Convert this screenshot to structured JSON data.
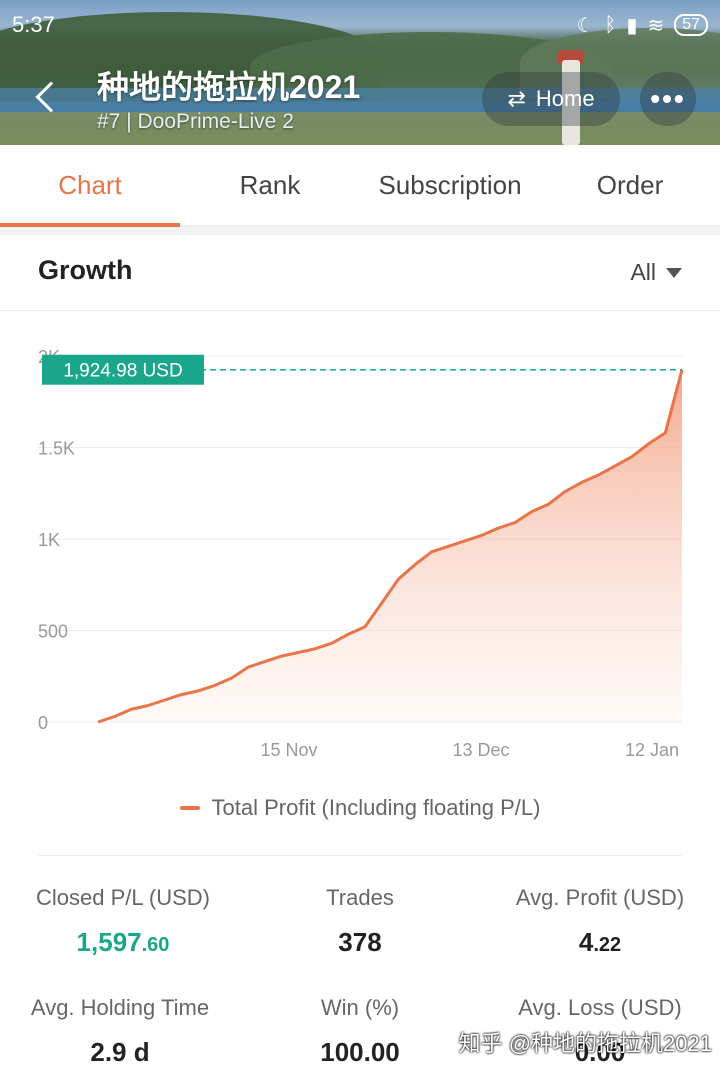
{
  "status_bar": {
    "time": "5:37",
    "battery": "57"
  },
  "header": {
    "title": "种地的拖拉机2021",
    "subtitle": "#7 | DooPrime-Live 2",
    "home_label": "Home",
    "more_label": "•••"
  },
  "tabs": [
    {
      "label": "Chart",
      "active": true
    },
    {
      "label": "Rank",
      "active": false
    },
    {
      "label": "Subscription",
      "active": false
    },
    {
      "label": "Order",
      "active": false
    }
  ],
  "growth": {
    "title": "Growth",
    "range": "All"
  },
  "chart_data": {
    "type": "area",
    "y_ticks": [
      "0",
      "500",
      "1K",
      "1.5K",
      "2K"
    ],
    "ylim": [
      0,
      2000
    ],
    "x_ticks": [
      "15 Nov",
      "13 Dec",
      "12 Jan"
    ],
    "current_value_label": "1,924.98 USD",
    "current_value": 1924.98,
    "series": [
      {
        "name": "Total Profit (Including floating P/L)",
        "color": "#e8744a",
        "values": [
          0,
          30,
          70,
          90,
          120,
          150,
          170,
          200,
          240,
          300,
          330,
          360,
          380,
          400,
          430,
          480,
          520,
          650,
          780,
          860,
          930,
          960,
          990,
          1020,
          1060,
          1090,
          1150,
          1190,
          1260,
          1310,
          1350,
          1400,
          1450,
          1520,
          1580,
          1924.98
        ]
      }
    ]
  },
  "legend_label": "Total Profit (Including floating P/L)",
  "stats": {
    "closed_pl_label": "Closed P/L (USD)",
    "closed_pl_int": "1,597",
    "closed_pl_dec": ".60",
    "trades_label": "Trades",
    "trades_value": "378",
    "avg_profit_label": "Avg. Profit (USD)",
    "avg_profit_int": "4",
    "avg_profit_dec": ".22",
    "holding_label": "Avg. Holding Time",
    "holding_value": "2.9 d",
    "win_label": "Win (%)",
    "win_value": "100.00",
    "avg_loss_label": "Avg. Loss (USD)",
    "avg_loss_value": "0.00"
  },
  "watermark": "知乎 @种地的拖拉机2021"
}
